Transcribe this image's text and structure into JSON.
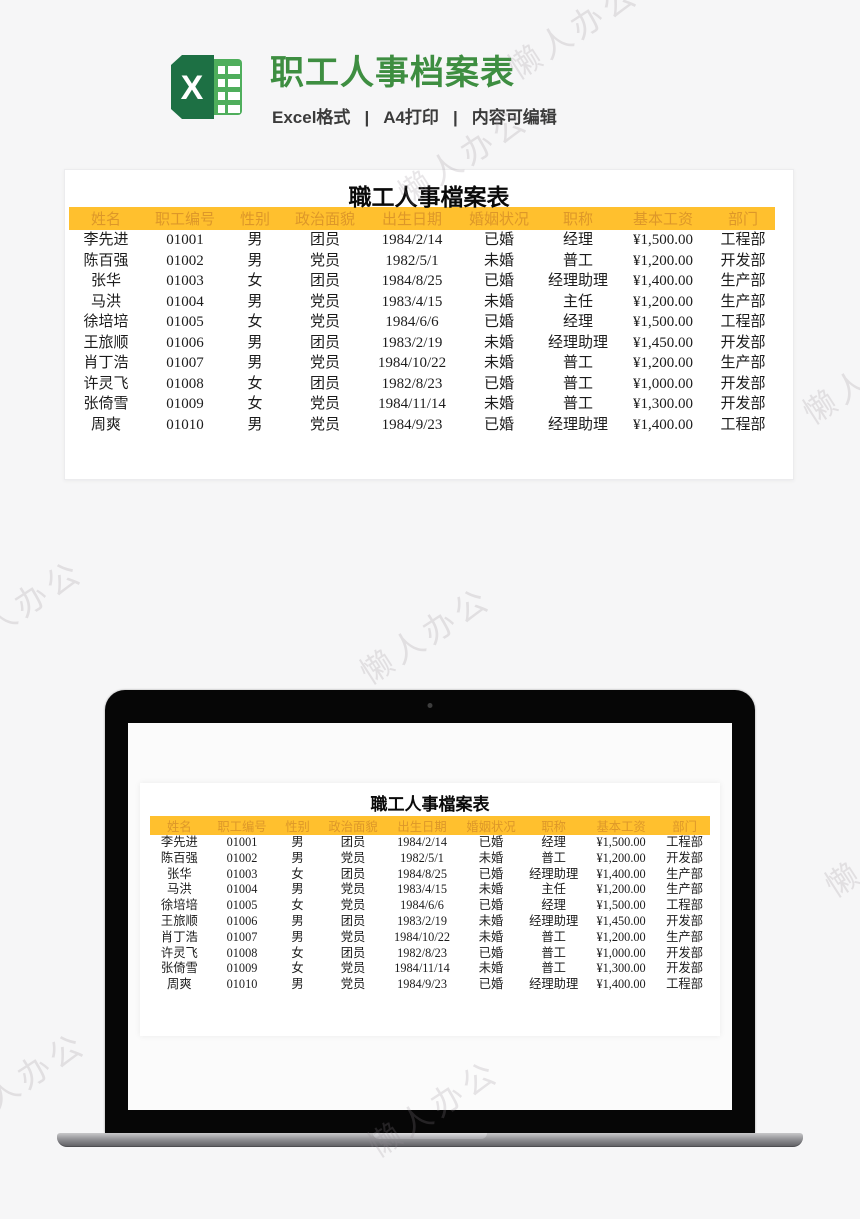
{
  "header": {
    "title": "职工人事档案表",
    "title_color": "#3e8e41",
    "subtitle_parts": [
      "Excel格式",
      "A4打印",
      "内容可编辑"
    ],
    "separator": "|"
  },
  "sheet": {
    "title": "職工人事檔案表",
    "header_bg": "#ffc02e",
    "header_text_color": "#dd9729",
    "columns": [
      "姓名",
      "职工编号",
      "性别",
      "政治面貌",
      "出生日期",
      "婚姻状况",
      "职称",
      "基本工资",
      "部门"
    ],
    "rows": [
      [
        "李先进",
        "01001",
        "男",
        "团员",
        "1984/2/14",
        "已婚",
        "经理",
        "¥1,500.00",
        "工程部"
      ],
      [
        "陈百强",
        "01002",
        "男",
        "党员",
        "1982/5/1",
        "未婚",
        "普工",
        "¥1,200.00",
        "开发部"
      ],
      [
        "张华",
        "01003",
        "女",
        "团员",
        "1984/8/25",
        "已婚",
        "经理助理",
        "¥1,400.00",
        "生产部"
      ],
      [
        "马洪",
        "01004",
        "男",
        "党员",
        "1983/4/15",
        "未婚",
        "主任",
        "¥1,200.00",
        "生产部"
      ],
      [
        "徐培培",
        "01005",
        "女",
        "党员",
        "1984/6/6",
        "已婚",
        "经理",
        "¥1,500.00",
        "工程部"
      ],
      [
        "王旅顺",
        "01006",
        "男",
        "团员",
        "1983/2/19",
        "未婚",
        "经理助理",
        "¥1,450.00",
        "开发部"
      ],
      [
        "肖丁浩",
        "01007",
        "男",
        "党员",
        "1984/10/22",
        "未婚",
        "普工",
        "¥1,200.00",
        "生产部"
      ],
      [
        "许灵飞",
        "01008",
        "女",
        "团员",
        "1982/8/23",
        "已婚",
        "普工",
        "¥1,000.00",
        "开发部"
      ],
      [
        "张倚雪",
        "01009",
        "女",
        "党员",
        "1984/11/14",
        "未婚",
        "普工",
        "¥1,300.00",
        "开发部"
      ],
      [
        "周爽",
        "01010",
        "男",
        "党员",
        "1984/9/23",
        "已婚",
        "经理助理",
        "¥1,400.00",
        "工程部"
      ]
    ]
  },
  "watermark": {
    "text": "懒人办公"
  }
}
